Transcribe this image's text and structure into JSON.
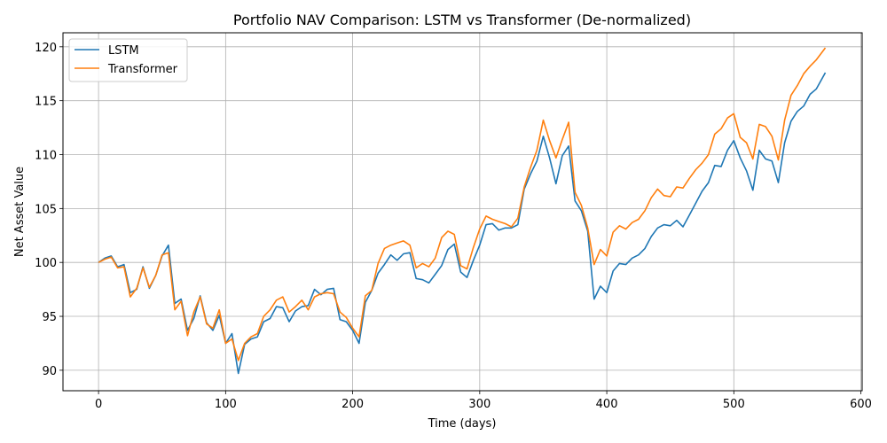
{
  "chart_data": {
    "type": "line",
    "title": "Portfolio NAV Comparison: LSTM vs Transformer (De-normalized)",
    "xlabel": "Time (days)",
    "ylabel": "Net Asset Value",
    "xlim": [
      -28,
      601
    ],
    "ylim": [
      88.1,
      121.3
    ],
    "xticks": [
      0,
      100,
      200,
      300,
      400,
      500,
      600
    ],
    "yticks": [
      90,
      95,
      100,
      105,
      110,
      115,
      120
    ],
    "grid": true,
    "legend": "upper left",
    "x": [
      0,
      5,
      10,
      15,
      20,
      25,
      30,
      35,
      40,
      45,
      50,
      55,
      60,
      65,
      70,
      75,
      80,
      85,
      90,
      95,
      100,
      105,
      110,
      115,
      120,
      125,
      130,
      135,
      140,
      145,
      150,
      155,
      160,
      165,
      170,
      175,
      180,
      185,
      190,
      195,
      200,
      205,
      210,
      215,
      220,
      225,
      230,
      235,
      240,
      245,
      250,
      255,
      260,
      265,
      270,
      275,
      280,
      285,
      290,
      295,
      300,
      305,
      310,
      315,
      320,
      325,
      330,
      335,
      340,
      345,
      350,
      355,
      360,
      365,
      370,
      375,
      380,
      385,
      390,
      395,
      400,
      405,
      410,
      415,
      420,
      425,
      430,
      435,
      440,
      445,
      450,
      455,
      460,
      465,
      470,
      475,
      480,
      485,
      490,
      495,
      500,
      505,
      510,
      515,
      520,
      525,
      530,
      535,
      540,
      545,
      550,
      555,
      560,
      565,
      572
    ],
    "series": [
      {
        "name": "LSTM",
        "color": "#1f77b4",
        "values": [
          100.0,
          100.4,
          100.6,
          99.6,
          99.8,
          97.2,
          97.5,
          99.6,
          97.6,
          98.8,
          100.6,
          101.6,
          96.2,
          96.6,
          93.7,
          94.8,
          96.9,
          94.4,
          93.7,
          95.1,
          92.5,
          93.4,
          89.7,
          92.4,
          92.9,
          93.1,
          94.5,
          94.8,
          95.9,
          95.8,
          94.5,
          95.5,
          95.9,
          96.0,
          97.5,
          97.0,
          97.5,
          97.6,
          94.7,
          94.5,
          93.7,
          92.5,
          96.3,
          97.4,
          99.0,
          99.8,
          100.7,
          100.2,
          100.8,
          100.9,
          98.5,
          98.4,
          98.1,
          98.9,
          99.7,
          101.2,
          101.7,
          99.1,
          98.6,
          100.2,
          101.6,
          103.5,
          103.6,
          103.0,
          103.2,
          103.2,
          103.5,
          106.8,
          108.2,
          109.4,
          111.7,
          109.7,
          107.3,
          109.9,
          110.8,
          105.7,
          104.8,
          102.9,
          96.6,
          97.8,
          97.2,
          99.2,
          99.9,
          99.8,
          100.4,
          100.7,
          101.3,
          102.4,
          103.2,
          103.5,
          103.4,
          103.9,
          103.3,
          104.4,
          105.5,
          106.6,
          107.4,
          109.0,
          108.9,
          110.4,
          111.3,
          109.7,
          108.5,
          106.7,
          110.4,
          109.6,
          109.4,
          107.4,
          111.1,
          113.1,
          114.0,
          114.5,
          115.6,
          116.1,
          117.6
        ]
      },
      {
        "name": "Transformer",
        "color": "#ff7f0e",
        "values": [
          100.0,
          100.3,
          100.5,
          99.5,
          99.6,
          96.8,
          97.6,
          99.5,
          97.7,
          98.8,
          100.7,
          100.9,
          95.6,
          96.4,
          93.2,
          95.4,
          96.8,
          94.3,
          93.9,
          95.6,
          92.5,
          92.9,
          90.9,
          92.5,
          93.1,
          93.4,
          95.0,
          95.6,
          96.5,
          96.8,
          95.4,
          95.9,
          96.5,
          95.6,
          96.8,
          97.1,
          97.2,
          97.1,
          95.4,
          94.9,
          93.9,
          93.1,
          96.9,
          97.4,
          99.9,
          101.3,
          101.6,
          101.8,
          102.0,
          101.6,
          99.5,
          99.9,
          99.6,
          100.4,
          102.3,
          102.9,
          102.6,
          99.7,
          99.4,
          101.4,
          103.1,
          104.3,
          104.0,
          103.8,
          103.6,
          103.3,
          104.1,
          107.0,
          108.8,
          110.4,
          113.2,
          111.3,
          109.7,
          111.4,
          113.0,
          106.5,
          105.3,
          103.2,
          99.8,
          101.2,
          100.6,
          102.8,
          103.4,
          103.1,
          103.7,
          104.0,
          104.8,
          106.0,
          106.8,
          106.2,
          106.1,
          107.0,
          106.9,
          107.8,
          108.6,
          109.2,
          110.0,
          111.9,
          112.4,
          113.4,
          113.8,
          111.6,
          111.1,
          109.6,
          112.8,
          112.6,
          111.7,
          109.5,
          113.2,
          115.5,
          116.4,
          117.5,
          118.2,
          118.8,
          119.9
        ]
      }
    ]
  }
}
